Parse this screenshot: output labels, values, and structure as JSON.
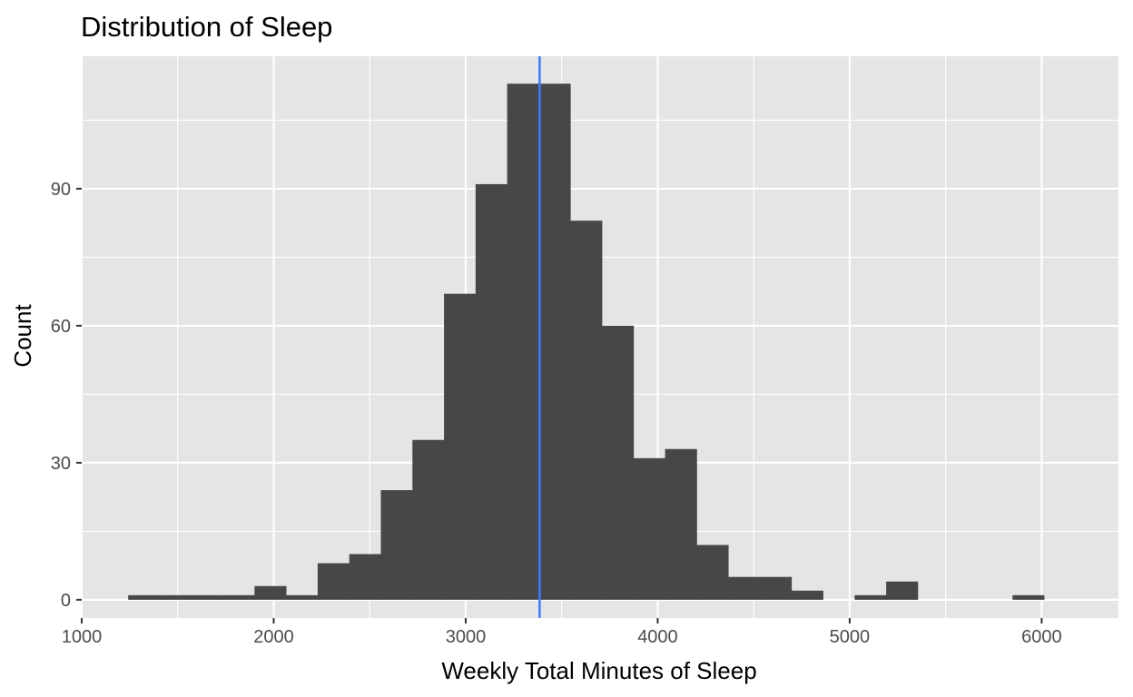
{
  "chart_data": {
    "type": "bar",
    "subtype": "histogram",
    "title": "Distribution of Sleep",
    "xlabel": "Weekly Total Minutes of Sleep",
    "ylabel": "Count",
    "xlim": [
      1000,
      6400
    ],
    "ylim": [
      -4,
      119
    ],
    "x_ticks": [
      1000,
      2000,
      3000,
      4000,
      5000,
      6000
    ],
    "x_tick_labels": [
      "1000",
      "2000",
      "3000",
      "4000",
      "5000",
      "6000"
    ],
    "y_ticks": [
      0,
      30,
      60,
      90
    ],
    "y_tick_labels": [
      "0",
      "30",
      "60",
      "90"
    ],
    "bin_width": 164.5,
    "bin_start": 1242,
    "counts": [
      1,
      1,
      1,
      1,
      3,
      1,
      8,
      10,
      24,
      35,
      67,
      91,
      113,
      113,
      83,
      60,
      31,
      33,
      12,
      5,
      5,
      2,
      0,
      1,
      4,
      0,
      0,
      0,
      1
    ],
    "mean_line": {
      "x": 3385,
      "color": "#3b7cff"
    },
    "bar_color": "#474747",
    "panel_background": "#e5e5e5",
    "grid": true,
    "grid_color": "#ffffff"
  }
}
